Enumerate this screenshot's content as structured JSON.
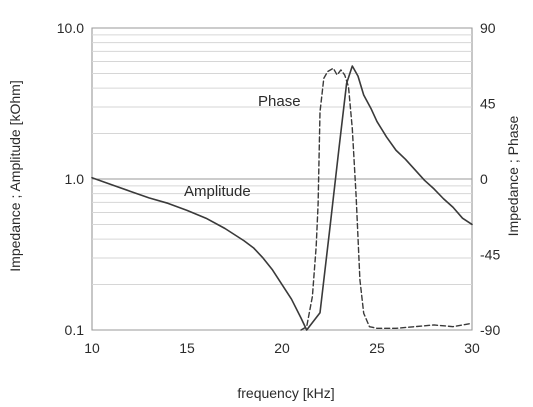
{
  "chart_data": {
    "type": "line",
    "xlabel": "frequency [kHz]",
    "ylabel_left": "Impedance ; Amplitude [kOhm]",
    "ylabel_right": "Impedance ; Phase",
    "xlim": [
      10,
      30
    ],
    "ylim_left": [
      0.1,
      10.0
    ],
    "ylim_right": [
      -90,
      90
    ],
    "left_scale": "log",
    "grid": true,
    "x_ticks": [
      "10",
      "15",
      "20",
      "25",
      "30"
    ],
    "y_left_ticks": [
      "0.1",
      "1.0",
      "10.0"
    ],
    "y_right_ticks": [
      "-90",
      "-45",
      "0",
      "45",
      "90"
    ],
    "series": [
      {
        "name": "Amplitude",
        "axis": "left",
        "style": "solid",
        "points": [
          [
            10.0,
            1.02
          ],
          [
            11.0,
            0.92
          ],
          [
            12.0,
            0.83
          ],
          [
            13.0,
            0.75
          ],
          [
            14.0,
            0.69
          ],
          [
            15.0,
            0.62
          ],
          [
            16.0,
            0.55
          ],
          [
            17.0,
            0.47
          ],
          [
            18.0,
            0.39
          ],
          [
            18.5,
            0.35
          ],
          [
            19.0,
            0.3
          ],
          [
            19.5,
            0.25
          ],
          [
            20.0,
            0.2
          ],
          [
            20.5,
            0.16
          ],
          [
            21.0,
            0.12
          ],
          [
            21.3,
            0.1
          ],
          [
            22.0,
            0.13
          ],
          [
            22.5,
            0.45
          ],
          [
            23.0,
            1.6
          ],
          [
            23.4,
            4.3
          ],
          [
            23.7,
            5.6
          ],
          [
            24.0,
            4.8
          ],
          [
            24.3,
            3.6
          ],
          [
            24.7,
            2.9
          ],
          [
            25.0,
            2.4
          ],
          [
            25.5,
            1.9
          ],
          [
            26.0,
            1.55
          ],
          [
            26.5,
            1.35
          ],
          [
            27.0,
            1.15
          ],
          [
            27.5,
            0.98
          ],
          [
            28.0,
            0.86
          ],
          [
            28.5,
            0.74
          ],
          [
            29.0,
            0.65
          ],
          [
            29.5,
            0.55
          ],
          [
            30.0,
            0.5
          ]
        ]
      },
      {
        "name": "Phase",
        "axis": "right",
        "style": "dashed",
        "points": [
          [
            21.0,
            -90
          ],
          [
            21.3,
            -88
          ],
          [
            21.6,
            -70
          ],
          [
            21.8,
            -40
          ],
          [
            21.9,
            -15
          ],
          [
            22.0,
            40
          ],
          [
            22.2,
            60
          ],
          [
            22.4,
            64
          ],
          [
            22.7,
            66
          ],
          [
            22.9,
            62
          ],
          [
            23.1,
            65
          ],
          [
            23.3,
            62
          ],
          [
            23.5,
            55
          ],
          [
            23.7,
            30
          ],
          [
            23.9,
            -10
          ],
          [
            24.1,
            -60
          ],
          [
            24.3,
            -80
          ],
          [
            24.6,
            -88
          ],
          [
            25.0,
            -89
          ],
          [
            26.0,
            -89
          ],
          [
            27.0,
            -88
          ],
          [
            28.0,
            -87
          ],
          [
            29.0,
            -88
          ],
          [
            30.0,
            -86
          ]
        ]
      }
    ],
    "annotations": [
      "Phase",
      "Amplitude"
    ]
  }
}
